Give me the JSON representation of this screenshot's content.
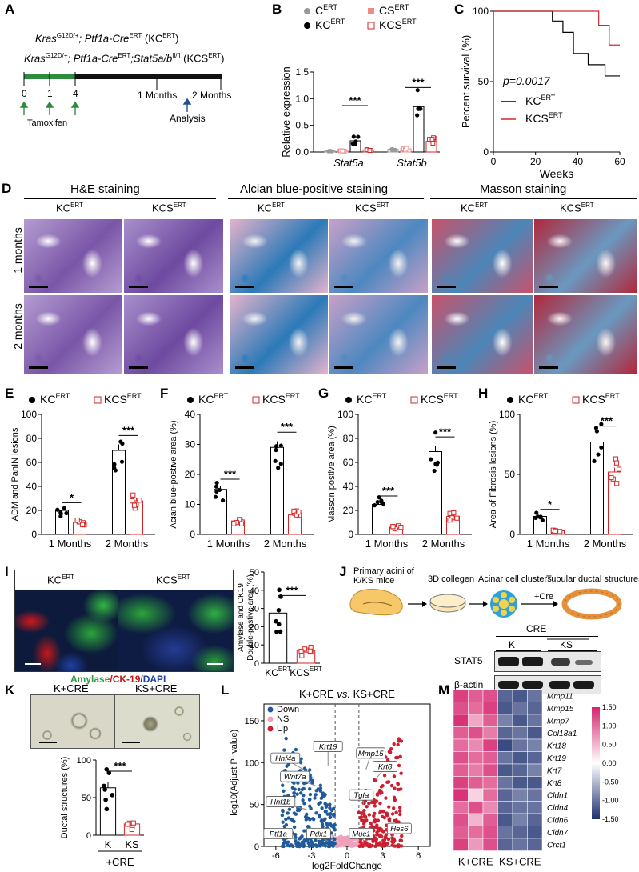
{
  "panel_letters": [
    "A",
    "B",
    "C",
    "D",
    "E",
    "F",
    "G",
    "H",
    "I",
    "J",
    "K",
    "L",
    "M"
  ],
  "A": {
    "line1_gene": "Kras",
    "line1_sup": "G12D/+",
    "line1_rest": "; Ptf1a-Cre",
    "line1_sup2": "ERT",
    "line1_tail": " (KC",
    "line1_tail2": ")",
    "line2_gene": "Kras",
    "line2_sup": "G12D/+",
    "line2_rest": "; Ptf1a-Cre",
    "line2_sup2": "ERT",
    "line2_mid": ";Stat5a/b",
    "line2_sup3": "fl/fl",
    "line2_tail": " (KCS",
    "line2_tail2": ")",
    "ticks": [
      "0",
      "1",
      "4"
    ],
    "month_ticks": [
      "1 Months",
      "2 Months"
    ],
    "tamoxifen_label": "Tamoxifen",
    "analysis_label": "Analysis"
  },
  "B": {
    "legend": [
      "C",
      "CS",
      "KC",
      "KCS"
    ],
    "legend_sup": "ERT",
    "colors": {
      "C": "#999999",
      "CS": "#ef8a8a",
      "KC": "#000000",
      "KCS": "#d62728"
    },
    "sig": [
      "***",
      "***"
    ]
  },
  "C": {
    "pvalue": "p=0.0017",
    "legend": [
      "KC",
      "KCS"
    ],
    "legend_sup": "ERT"
  },
  "D": {
    "groups": [
      "H&E staining",
      "Alcian blue-positive staining",
      "Masson staining"
    ],
    "col_labels": [
      "KC",
      "KCS",
      "KC",
      "KCS",
      "KC",
      "KCS"
    ],
    "col_sup": "ERT",
    "row_labels": [
      "1 months",
      "2 months"
    ]
  },
  "I": {
    "left_label": "KC",
    "right_label": "KCS",
    "sup": "ERT",
    "amylase": "Amylase",
    "ck19": "/CK-19",
    "dapi": "/DAPI"
  },
  "J": {
    "steps": [
      "Primary acini of\nK/KS mice",
      "3D collegen",
      "Acinar cell clusters",
      "Tubular ductal structures"
    ],
    "cre_arrow": "+Cre",
    "blot_title": "CRE",
    "blot_groups": [
      "K",
      "KS"
    ],
    "blot_rows": [
      "STAT5",
      "β-actin"
    ]
  },
  "K": {
    "img_labels": [
      "K+CRE",
      "KS+CRE"
    ],
    "bottom_label": "+CRE"
  },
  "L": {
    "title_a": "K+CRE",
    "title_vs": "vs.",
    "title_b": "KS+CRE",
    "legend": [
      "Down",
      "NS",
      "Up"
    ],
    "legend_colors": [
      "#1f5a99",
      "#f0a0b8",
      "#cc1f2f"
    ],
    "genes": [
      "Krt19",
      "Hnf4a",
      "Wnt7a",
      "Hnf1b",
      "Ptf1a",
      "Pdx1",
      "Mmp15",
      "Krt8",
      "Tgfa",
      "Muc1",
      "Hes6"
    ]
  },
  "M": {
    "genes": [
      "Mmp11",
      "Mmp15",
      "Mmp7",
      "Col18a1",
      "Krt18",
      "Krt19",
      "Krt7",
      "Krt8",
      "Cldn1",
      "Cldn4",
      "Cldn6",
      "Cldn7",
      "Crct1"
    ],
    "colorbar_ticks": [
      "1.50",
      "1.00",
      "0.50",
      "0.00",
      "-0.50",
      "-1.00",
      "-1.50"
    ],
    "group_labels": [
      "K+CRE",
      "KS+CRE"
    ],
    "low_color": "#1d2f6f",
    "mid_color": "#ffffff",
    "high_color": "#d6246e",
    "values": [
      [
        1.3,
        1.1,
        1.2,
        -1.1,
        -1.2,
        -1.0
      ],
      [
        1.2,
        1.0,
        1.3,
        -1.2,
        -1.0,
        -1.1
      ],
      [
        1.4,
        0.6,
        1.1,
        -0.9,
        -1.2,
        -1.0
      ],
      [
        1.1,
        1.2,
        0.9,
        -1.1,
        -1.0,
        -1.2
      ],
      [
        1.0,
        0.8,
        1.3,
        -1.3,
        -1.0,
        -0.9
      ],
      [
        1.2,
        1.0,
        1.1,
        -1.0,
        -1.2,
        -1.1
      ],
      [
        1.1,
        0.9,
        1.2,
        -1.2,
        -1.1,
        -0.9
      ],
      [
        1.3,
        1.1,
        1.0,
        -1.0,
        -1.2,
        -1.2
      ],
      [
        1.4,
        0.3,
        1.0,
        -1.1,
        -0.9,
        -1.0
      ],
      [
        1.0,
        1.2,
        0.8,
        -1.1,
        -1.0,
        -1.0
      ],
      [
        1.2,
        0.5,
        1.1,
        -1.2,
        -0.9,
        -1.1
      ],
      [
        1.1,
        1.0,
        1.2,
        -1.0,
        -1.1,
        -1.2
      ],
      [
        1.3,
        0.7,
        1.2,
        -1.1,
        -1.0,
        -1.1
      ]
    ]
  },
  "chart_data": [
    {
      "panel": "B",
      "type": "bar",
      "ylabel": "Relative expression",
      "categories": [
        "Stat5a",
        "Stat5b"
      ],
      "ylim": [
        0,
        1.5
      ],
      "yticks": [
        "0.0",
        "0.5",
        "1.0",
        "1.5"
      ],
      "series": [
        {
          "name": "C",
          "values": [
            0.02,
            0.05
          ]
        },
        {
          "name": "CS",
          "values": [
            0.02,
            0.06
          ]
        },
        {
          "name": "KC",
          "values": [
            0.21,
            0.85
          ]
        },
        {
          "name": "KCS",
          "values": [
            0.04,
            0.2
          ]
        }
      ]
    },
    {
      "panel": "C",
      "type": "line",
      "xlabel": "Weeks",
      "ylabel": "Percent survival (%)",
      "xlim": [
        0,
        60
      ],
      "ylim": [
        0,
        100
      ],
      "xticks": [
        "0",
        "20",
        "40",
        "60"
      ],
      "yticks": [
        "0",
        "50",
        "100"
      ],
      "series": [
        {
          "name": "KC",
          "x": [
            0,
            28,
            28,
            33,
            33,
            38,
            38,
            45,
            45,
            53,
            53,
            57,
            57,
            60
          ],
          "y": [
            100,
            100,
            93,
            93,
            85,
            85,
            70,
            70,
            62,
            62,
            54,
            54,
            54,
            54
          ]
        },
        {
          "name": "KCS",
          "x": [
            0,
            50,
            50,
            55,
            55,
            60
          ],
          "y": [
            100,
            100,
            90,
            90,
            76,
            76
          ]
        }
      ]
    },
    {
      "panel": "E",
      "type": "bar",
      "ylabel": "ADM and PanIN lesions",
      "categories": [
        "1 Months",
        "2 Months"
      ],
      "ylim": [
        0,
        100
      ],
      "yticks": [
        "0",
        "20",
        "40",
        "60",
        "80",
        "100"
      ],
      "legend": [
        "KC",
        "KCS"
      ],
      "series": [
        {
          "name": "KC",
          "values": [
            20,
            70
          ]
        },
        {
          "name": "KCS",
          "values": [
            10,
            28
          ]
        }
      ],
      "sig": [
        "*",
        "***"
      ]
    },
    {
      "panel": "F",
      "type": "bar",
      "ylabel": "Acian blue-postive area (%)",
      "categories": [
        "1 Months",
        "2 Months"
      ],
      "ylim": [
        0,
        40
      ],
      "yticks": [
        "0",
        "10",
        "20",
        "30",
        "40"
      ],
      "legend": [
        "KC",
        "KCS"
      ],
      "series": [
        {
          "name": "KC",
          "values": [
            15,
            29
          ]
        },
        {
          "name": "KCS",
          "values": [
            4.5,
            6.5
          ]
        }
      ],
      "sig": [
        "***",
        "***"
      ]
    },
    {
      "panel": "G",
      "type": "bar",
      "ylabel": "Masson postive area (%)",
      "categories": [
        "1 Months",
        "2 Months"
      ],
      "ylim": [
        0,
        100
      ],
      "yticks": [
        "0",
        "20",
        "40",
        "60",
        "80",
        "100"
      ],
      "legend": [
        "KC",
        "KCS"
      ],
      "series": [
        {
          "name": "KC",
          "values": [
            25,
            69
          ]
        },
        {
          "name": "KCS",
          "values": [
            6,
            15
          ]
        }
      ],
      "sig": [
        "***",
        "***"
      ]
    },
    {
      "panel": "H",
      "type": "bar",
      "ylabel": "Area of Fibrosis lesions (%)",
      "categories": [
        "1 Months",
        "2 Months"
      ],
      "ylim": [
        0,
        100
      ],
      "yticks": [
        "0",
        "50",
        "100"
      ],
      "legend": [
        "KC",
        "KCS"
      ],
      "series": [
        {
          "name": "KC",
          "values": [
            15,
            77
          ]
        },
        {
          "name": "KCS",
          "values": [
            3,
            52
          ]
        }
      ],
      "sig": [
        "*",
        "***"
      ]
    },
    {
      "panel": "I",
      "type": "bar",
      "ylabel": "Amylase and CK19 Double-postive area (%)",
      "categories": [
        "KC",
        "KCS"
      ],
      "ylim": [
        0,
        50
      ],
      "yticks": [
        "0",
        "10",
        "20",
        "30",
        "40",
        "50"
      ],
      "values": [
        27.5,
        7
      ],
      "sig": [
        "***"
      ]
    },
    {
      "panel": "K",
      "type": "bar",
      "ylabel": "Ductal structures (%)",
      "categories": [
        "K",
        "KS"
      ],
      "ylim": [
        0,
        100
      ],
      "yticks": [
        "0",
        "50",
        "100"
      ],
      "values": [
        63,
        15
      ],
      "sig": [
        "***"
      ]
    },
    {
      "panel": "L",
      "type": "scatter",
      "xlabel": "log2FoldChange",
      "ylabel": "−log10(Adjust P−value)",
      "xlim": [
        -7,
        7
      ],
      "ylim": [
        0,
        170
      ],
      "xticks": [
        "-6",
        "-3",
        "0",
        "3",
        "6"
      ],
      "yticks": [
        "0",
        "50",
        "100",
        "150"
      ],
      "thresholds": {
        "x": [
          -1,
          1
        ]
      }
    }
  ]
}
